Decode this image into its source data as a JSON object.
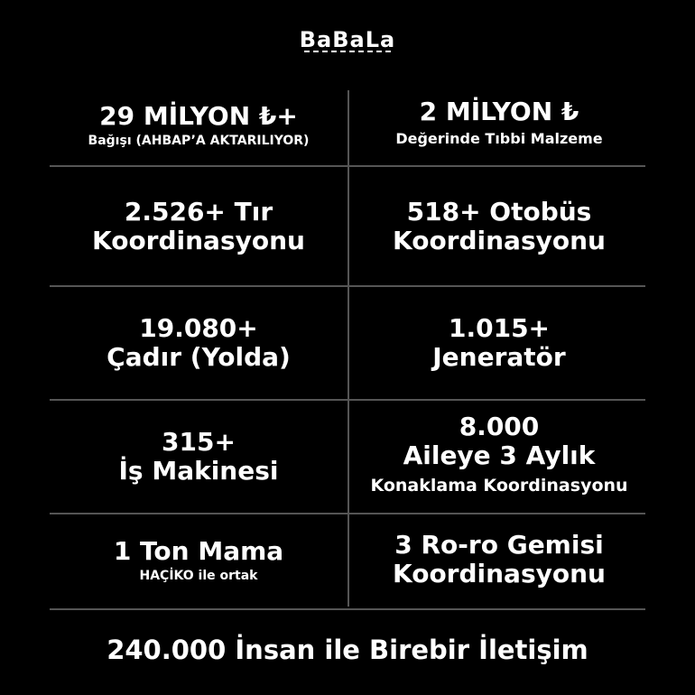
{
  "logo": "BaBaLa",
  "cells": [
    {
      "title": "29 MİLYON ₺+",
      "subtitle": "Bağışı (AHBAP’A AKTARILIYOR)"
    },
    {
      "title": "2 MİLYON ₺",
      "subtitle": "Değerinde Tıbbi Malzeme"
    },
    {
      "title": "2.526+ Tır",
      "subtitle": "Koordinasyonu"
    },
    {
      "title": "518+ Otobüs",
      "subtitle": "Koordinasyonu"
    },
    {
      "title": "19.080+",
      "subtitle": "Çadır (Yolda)"
    },
    {
      "title": "1.015+",
      "subtitle": "Jeneratör"
    },
    {
      "title": "315+",
      "subtitle": "İş Makinesi"
    },
    {
      "title": "8.000",
      "subtitle": "Aileye 3 Aylık",
      "extra": "Konaklama Koordinasyonu"
    },
    {
      "title": "1 Ton Mama",
      "subtitle": "HAÇİKO ile ortak"
    },
    {
      "title": "3 Ro-ro Gemisi",
      "subtitle": "Koordinasyonu"
    }
  ],
  "footer": "240.000 İnsan ile Birebir İletişim"
}
